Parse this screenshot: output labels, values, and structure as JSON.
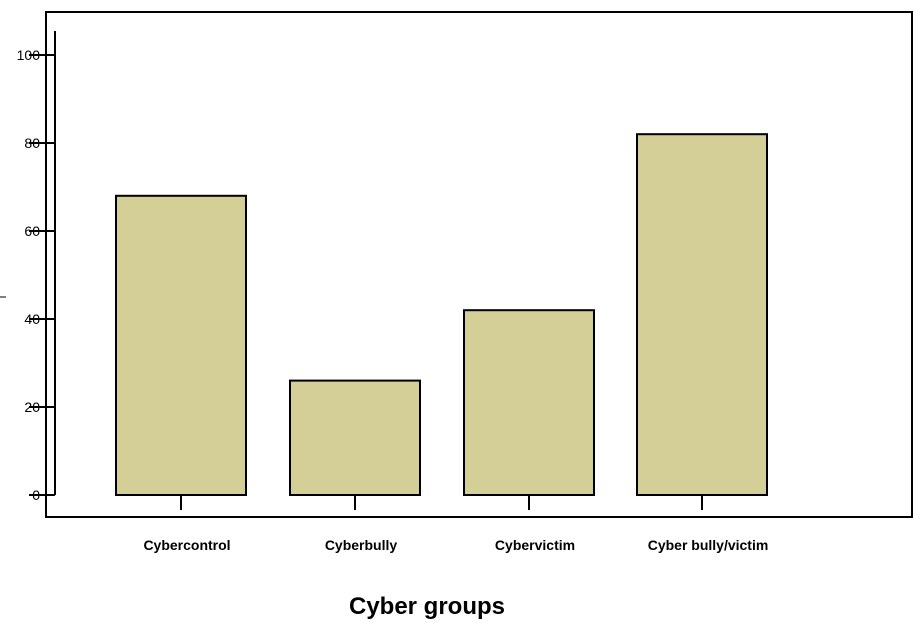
{
  "chart_data": {
    "type": "bar",
    "categories": [
      "Cybercontrol",
      "Cyberbully",
      "Cybervictim",
      "Cyber bully/victim"
    ],
    "values": [
      68,
      26,
      42,
      82
    ],
    "title": "",
    "xlabel": "Cyber groups",
    "ylabel": "",
    "ylim": [
      0,
      100
    ],
    "yticks": [
      0,
      20,
      40,
      60,
      80,
      100
    ],
    "grid": false,
    "bar_color": "#d4cf97"
  }
}
